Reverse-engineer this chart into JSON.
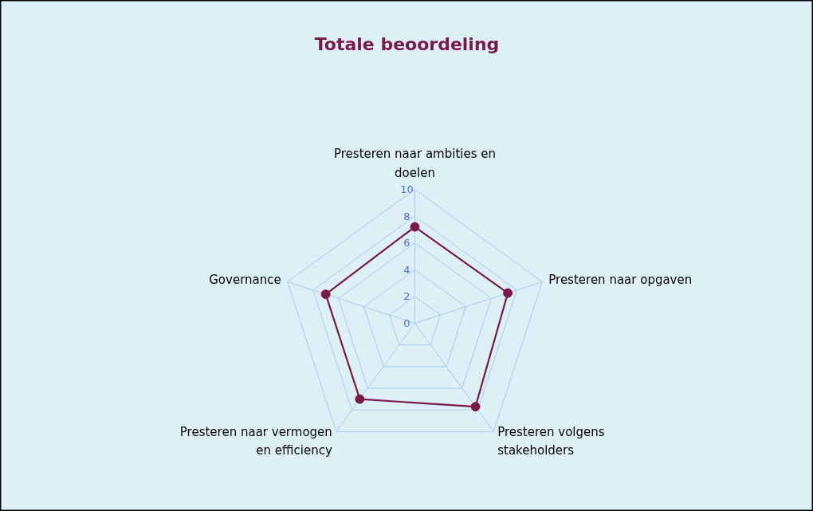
{
  "chart_data": {
    "type": "radar",
    "title": "Totale beoordeling",
    "categories": [
      "Presteren naar ambities en\ndoelen",
      "Presteren naar opgaven",
      "Presteren volgens\nstakeholders",
      "Presteren naar vermogen\nen efficiency",
      "Governance"
    ],
    "series": [
      {
        "color": "#7a1a4a",
        "values": [
          7.2,
          7.3,
          7.7,
          7.0,
          7.0
        ]
      }
    ],
    "ylim": [
      0,
      10
    ],
    "yticks": [
      0,
      2,
      4,
      6,
      8,
      10
    ],
    "grid": true,
    "marker": "circle",
    "line_style": "solid"
  }
}
